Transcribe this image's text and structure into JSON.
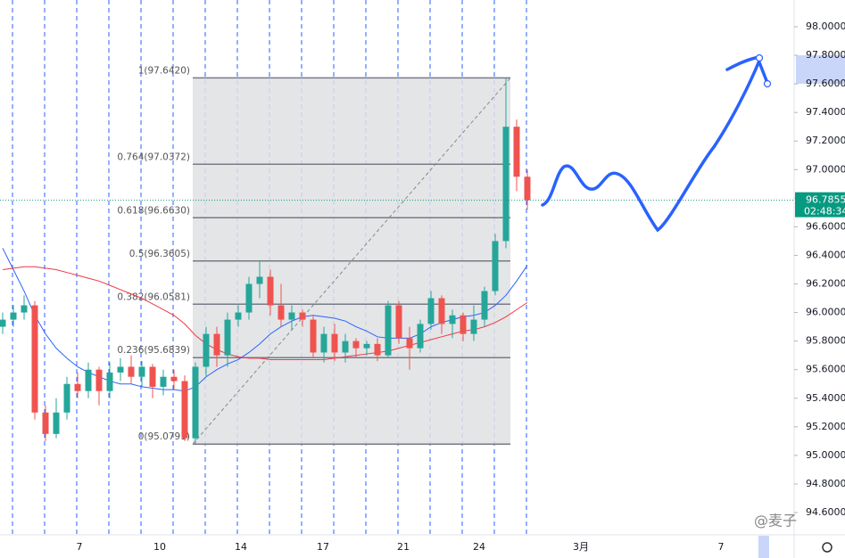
{
  "chart_data": {
    "type": "candlestick",
    "ylim": [
      94.444,
      98.187
    ],
    "yticks": [
      94.6,
      94.8,
      95,
      95.2,
      95.4,
      95.6,
      95.8,
      96,
      96.2,
      96.4,
      96.6,
      96.8,
      97,
      97.2,
      97.4,
      97.6,
      97.8,
      98
    ],
    "ytick_labels": [
      "94.6000",
      "94.8000",
      "95.0000",
      "95.2000",
      "95.4000",
      "95.6000",
      "95.8000",
      "96.0000",
      "96.2000",
      "96.4000",
      "96.6000",
      "96.8000",
      "97.0000",
      "97.2000",
      "97.4000",
      "97.6000",
      "97.8000",
      "98.0000"
    ],
    "x_labels": [
      "7",
      "10",
      "14",
      "17",
      "21",
      "24",
      "3月",
      "7"
    ],
    "up_color": "#26a69a",
    "down_color": "#ef5350",
    "open": [
      95.9,
      95.95,
      96.0,
      96.05,
      95.3,
      95.15,
      95.3,
      95.5,
      95.45,
      95.6,
      95.45,
      95.58,
      95.62,
      95.55,
      95.62,
      95.48,
      95.55,
      95.52,
      95.12,
      95.62,
      95.85,
      95.7,
      95.95,
      96.0,
      96.2,
      96.25,
      96.05,
      95.95,
      96.0,
      95.95,
      95.72,
      95.85,
      95.72,
      95.8,
      95.75,
      95.78,
      95.7,
      96.05,
      95.82,
      95.75,
      95.92,
      96.1,
      95.92,
      95.98,
      95.85,
      95.95,
      96.15,
      96.5,
      97.3,
      96.95
    ],
    "high": [
      96.0,
      96.05,
      96.12,
      96.08,
      95.35,
      95.4,
      95.55,
      95.58,
      95.65,
      95.62,
      95.65,
      95.68,
      95.7,
      95.66,
      95.64,
      95.6,
      95.6,
      95.56,
      95.65,
      95.9,
      95.9,
      96.0,
      96.05,
      96.25,
      96.36,
      96.3,
      96.2,
      96.05,
      96.02,
      95.98,
      95.9,
      95.92,
      95.85,
      95.82,
      95.8,
      95.82,
      96.08,
      96.08,
      95.9,
      95.95,
      96.15,
      96.12,
      96.02,
      96.0,
      96.05,
      96.18,
      96.55,
      97.642,
      97.35,
      97.0
    ],
    "low": [
      95.85,
      95.9,
      95.95,
      95.25,
      95.1,
      95.12,
      95.25,
      95.4,
      95.4,
      95.35,
      95.4,
      95.52,
      95.5,
      95.48,
      95.4,
      95.42,
      95.46,
      95.1,
      95.08,
      95.55,
      95.62,
      95.62,
      95.9,
      95.95,
      96.1,
      95.98,
      95.9,
      95.88,
      95.9,
      95.68,
      95.65,
      95.66,
      95.65,
      95.68,
      95.7,
      95.66,
      95.68,
      95.78,
      95.6,
      95.72,
      95.88,
      95.85,
      95.82,
      95.8,
      95.8,
      95.9,
      96.12,
      96.45,
      96.85,
      96.72
    ],
    "close": [
      95.95,
      96.0,
      96.05,
      95.3,
      95.15,
      95.3,
      95.5,
      95.45,
      95.6,
      95.45,
      95.58,
      95.62,
      95.55,
      95.62,
      95.48,
      95.55,
      95.52,
      95.12,
      95.62,
      95.85,
      95.7,
      95.95,
      96.0,
      96.2,
      96.25,
      96.05,
      95.95,
      96.0,
      95.95,
      95.72,
      95.85,
      95.72,
      95.8,
      95.75,
      95.78,
      95.7,
      96.05,
      95.82,
      95.75,
      95.92,
      96.1,
      95.92,
      95.98,
      95.85,
      95.95,
      96.15,
      96.5,
      97.3,
      96.95,
      96.7855
    ],
    "series": [
      {
        "color": "#2962ff",
        "values": [
          96.45,
          96.3,
          96.15,
          95.98,
          95.85,
          95.75,
          95.68,
          95.62,
          95.58,
          95.55,
          95.52,
          95.5,
          95.5,
          95.48,
          95.47,
          95.46,
          95.46,
          95.45,
          95.48,
          95.55,
          95.6,
          95.64,
          95.67,
          95.72,
          95.78,
          95.85,
          95.9,
          95.94,
          95.97,
          95.98,
          95.97,
          95.96,
          95.94,
          95.9,
          95.87,
          95.83,
          95.82,
          95.82,
          95.82,
          95.85,
          95.9,
          95.93,
          95.95,
          95.97,
          95.98,
          96.0,
          96.05,
          96.12,
          96.22,
          96.33
        ]
      },
      {
        "color": "#f23645",
        "values": [
          96.3,
          96.31,
          96.32,
          96.32,
          96.31,
          96.3,
          96.28,
          96.26,
          96.24,
          96.22,
          96.19,
          96.16,
          96.13,
          96.1,
          96.06,
          96.02,
          95.98,
          95.92,
          95.84,
          95.78,
          95.74,
          95.71,
          95.69,
          95.68,
          95.68,
          95.67,
          95.67,
          95.67,
          95.67,
          95.67,
          95.67,
          95.68,
          95.69,
          95.7,
          95.71,
          95.72,
          95.73,
          95.75,
          95.77,
          95.79,
          95.81,
          95.83,
          95.85,
          95.87,
          95.88,
          95.9,
          95.93,
          95.97,
          96.02,
          96.07
        ]
      }
    ],
    "fib_levels": [
      {
        "value": 97.642,
        "label": "1(97.6420)"
      },
      {
        "value": 97.0372,
        "label": "0.764(97.0372)"
      },
      {
        "value": 96.663,
        "label": "0.618(96.6630)"
      },
      {
        "value": 96.3605,
        "label": "0.5(96.3605)"
      },
      {
        "value": 96.0581,
        "label": "0.382(96.0581)"
      },
      {
        "value": 95.6839,
        "label": "0.236(95.6839)"
      },
      {
        "value": 95.0791,
        "label": "0(95.0791)"
      }
    ],
    "last_price": {
      "value": 96.7855,
      "label": "96.7855"
    },
    "countdown": "02:48:34",
    "watermark": "@麦子"
  }
}
